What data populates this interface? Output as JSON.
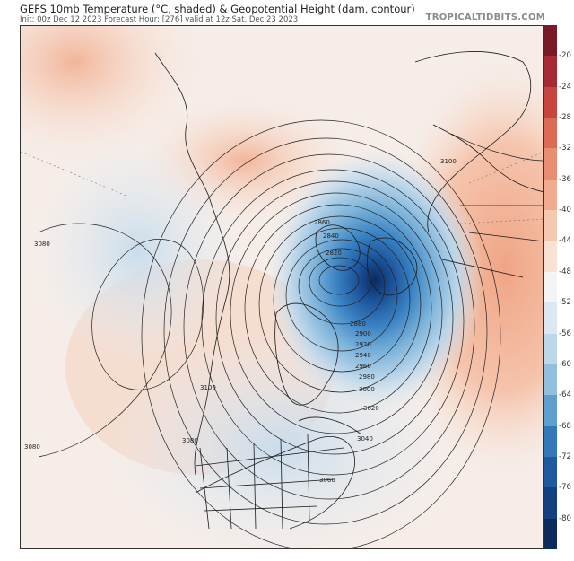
{
  "header": {
    "title": "GEFS 10mb Temperature (°C, shaded) & Geopotential Height (dam, contour)",
    "subtitle": "Init: 00z Dec 12 2023   Forecast Hour: [276]   valid at 12z Sat, Dec 23 2023",
    "brand": "TROPICALTIDBITS.COM"
  },
  "colorbar": {
    "ticks": [
      "-20",
      "-24",
      "-28",
      "-32",
      "-36",
      "-40",
      "-44",
      "-48",
      "-52",
      "-56",
      "-60",
      "-64",
      "-68",
      "-72",
      "-76",
      "-80"
    ],
    "colors": [
      "#7a1a26",
      "#a52a33",
      "#c8453f",
      "#dc6a55",
      "#e88d72",
      "#f0ab90",
      "#f5c8b2",
      "#f9e1d4",
      "#f4f4f4",
      "#dbe7f1",
      "#bcd6ea",
      "#92bfde",
      "#5f9fcd",
      "#3378b9",
      "#1f5aa1",
      "#143f80",
      "#0c2a5c"
    ]
  },
  "map": {
    "contour_labels": [
      {
        "text": "3080",
        "id": "left-upper"
      },
      {
        "text": "3100",
        "id": "right-top"
      },
      {
        "text": "2860",
        "id": "center-1"
      },
      {
        "text": "2840",
        "id": "center-2"
      },
      {
        "text": "2820",
        "id": "center-3"
      },
      {
        "text": "2880",
        "id": "center-4"
      },
      {
        "text": "2900",
        "id": "ring-2900"
      },
      {
        "text": "2920",
        "id": "ring-2920"
      },
      {
        "text": "2940",
        "id": "ring-2940"
      },
      {
        "text": "2960",
        "id": "ring-2960"
      },
      {
        "text": "2980",
        "id": "ring-2980"
      },
      {
        "text": "3000",
        "id": "ring-3000"
      },
      {
        "text": "3020",
        "id": "ring-3020"
      },
      {
        "text": "3040",
        "id": "ring-3040"
      },
      {
        "text": "3060",
        "id": "ring-3060"
      },
      {
        "text": "3100",
        "id": "west-3100"
      },
      {
        "text": "3080",
        "id": "west-3080"
      },
      {
        "text": "3080",
        "id": "left-lower"
      }
    ]
  }
}
